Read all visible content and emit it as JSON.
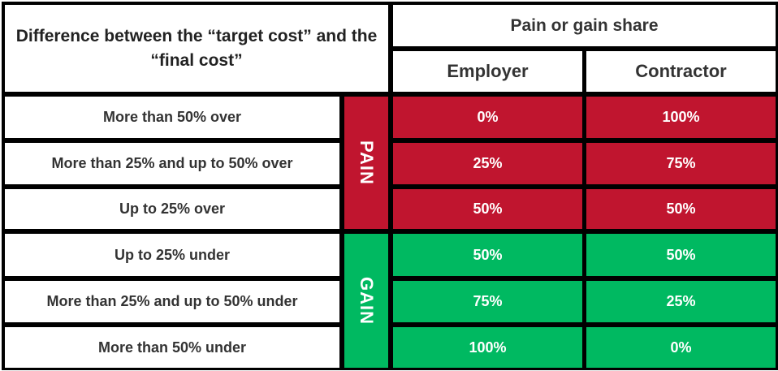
{
  "header": {
    "title": "Difference between the “target cost” and the “final cost”",
    "share": "Pain or gain share",
    "columns": [
      "Employer",
      "Contractor"
    ]
  },
  "groups": [
    {
      "label": "PAIN",
      "rows": [
        {
          "label": "More than 50% over",
          "values": [
            "0%",
            "100%"
          ]
        },
        {
          "label": "More than 25% and up to 50% over",
          "values": [
            "25%",
            "75%"
          ]
        },
        {
          "label": "Up to 25% over",
          "values": [
            "50%",
            "50%"
          ]
        }
      ]
    },
    {
      "label": "GAIN",
      "rows": [
        {
          "label": "Up to 25% under",
          "values": [
            "50%",
            "50%"
          ]
        },
        {
          "label": "More than 25% and up to 50% under",
          "values": [
            "75%",
            "25%"
          ]
        },
        {
          "label": "More than 50% under",
          "values": [
            "100%",
            "0%"
          ]
        }
      ]
    }
  ]
}
